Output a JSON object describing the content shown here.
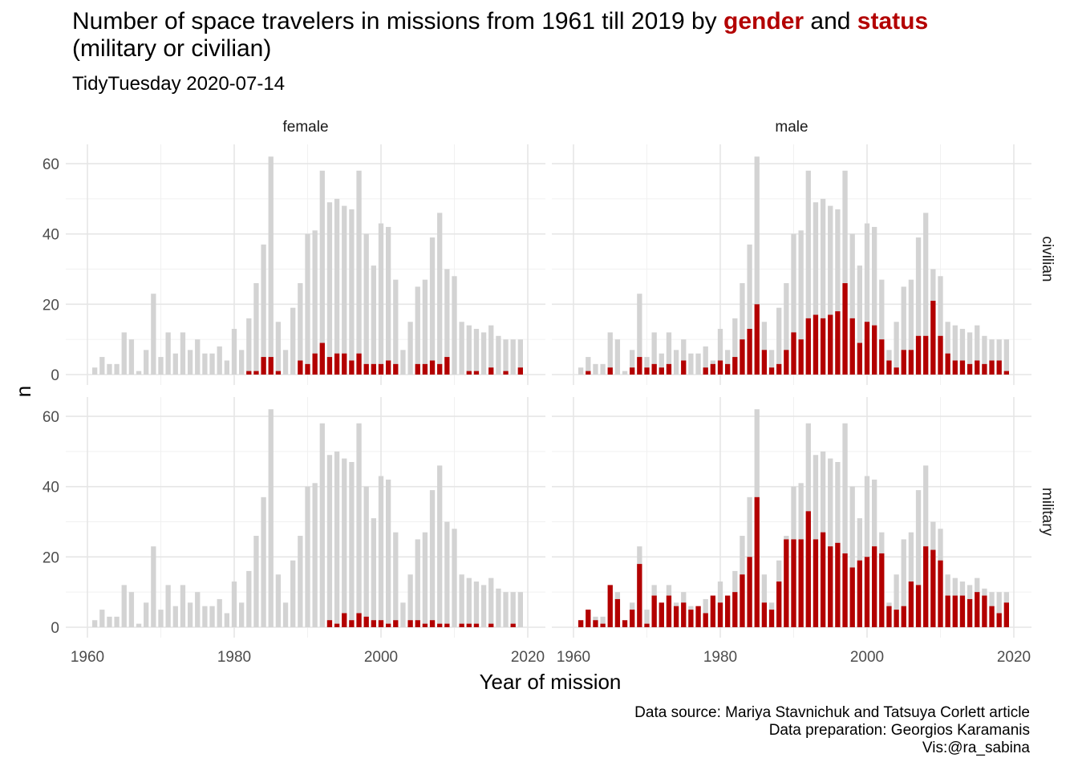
{
  "title": {
    "prefix": "Number of space travelers in missions from 1961 till 2019 by ",
    "gender_word": "gender",
    "middle": " and ",
    "status_word": "status",
    "line2": "(military or civilian)"
  },
  "subtitle": "TidyTuesday 2020-07-14",
  "caption": {
    "line1": "Data source: Mariya Stavnichuk and Tatsuya Corlett article",
    "line2": "Data preparation: Georgios Karamanis ",
    "line3": "Vis:@ra_sabina"
  },
  "colors": {
    "highlight": "#b30000",
    "background_bars": "#d3d3d3",
    "grid": "#e6e6e6"
  },
  "chart_data": {
    "type": "bar",
    "facet_cols": [
      "female",
      "male"
    ],
    "facet_rows": [
      "civilian",
      "military"
    ],
    "xlabel": "Year of mission",
    "ylabel": "n",
    "xlim": [
      1960,
      2020
    ],
    "x_ticks": [
      1960,
      1980,
      2000,
      2020
    ],
    "ylim": [
      0,
      65
    ],
    "y_ticks": [
      0,
      20,
      40,
      60
    ],
    "years": [
      1961,
      1962,
      1963,
      1964,
      1965,
      1966,
      1967,
      1968,
      1969,
      1970,
      1971,
      1972,
      1973,
      1974,
      1975,
      1976,
      1977,
      1978,
      1979,
      1980,
      1981,
      1982,
      1983,
      1984,
      1985,
      1986,
      1987,
      1988,
      1989,
      1990,
      1991,
      1992,
      1993,
      1994,
      1995,
      1996,
      1997,
      1998,
      1999,
      2000,
      2001,
      2002,
      2003,
      2004,
      2005,
      2006,
      2007,
      2008,
      2009,
      2010,
      2011,
      2012,
      2013,
      2014,
      2015,
      2016,
      2017,
      2018,
      2019
    ],
    "total_by_year": [
      2,
      5,
      3,
      3,
      12,
      10,
      1,
      7,
      23,
      5,
      12,
      6,
      12,
      7,
      10,
      6,
      6,
      8,
      4,
      13,
      7,
      16,
      26,
      37,
      62,
      15,
      7,
      19,
      26,
      40,
      41,
      58,
      49,
      50,
      48,
      47,
      58,
      40,
      31,
      43,
      42,
      27,
      7,
      15,
      25,
      27,
      39,
      46,
      30,
      28,
      15,
      14,
      13,
      12,
      14,
      11,
      10,
      10,
      10
    ],
    "panels": [
      {
        "gender": "female",
        "status": "civilian",
        "values": [
          0,
          0,
          0,
          0,
          0,
          0,
          0,
          0,
          0,
          0,
          0,
          0,
          0,
          0,
          0,
          0,
          0,
          0,
          0,
          0,
          0,
          1,
          1,
          5,
          5,
          1,
          0,
          0,
          4,
          3,
          6,
          9,
          5,
          6,
          6,
          4,
          6,
          3,
          3,
          3,
          4,
          3,
          0,
          0,
          3,
          3,
          4,
          3,
          5,
          0,
          0,
          1,
          1,
          0,
          2,
          0,
          1,
          0,
          2
        ]
      },
      {
        "gender": "male",
        "status": "civilian",
        "values": [
          0,
          1,
          0,
          0,
          2,
          0,
          0,
          2,
          5,
          2,
          3,
          2,
          3,
          0,
          4,
          0,
          0,
          2,
          3,
          4,
          3,
          5,
          10,
          13,
          20,
          7,
          2,
          3,
          7,
          12,
          10,
          16,
          17,
          16,
          17,
          18,
          26,
          16,
          9,
          15,
          14,
          10,
          4,
          2,
          7,
          7,
          11,
          11,
          21,
          11,
          6,
          4,
          4,
          3,
          4,
          3,
          4,
          4,
          1
        ]
      },
      {
        "gender": "female",
        "status": "military",
        "values": [
          0,
          0,
          0,
          0,
          0,
          0,
          0,
          0,
          0,
          0,
          0,
          0,
          0,
          0,
          0,
          0,
          0,
          0,
          0,
          0,
          0,
          0,
          0,
          0,
          0,
          0,
          0,
          0,
          0,
          0,
          0,
          0,
          2,
          1,
          4,
          2,
          4,
          3,
          2,
          2,
          1,
          2,
          0,
          2,
          2,
          1,
          2,
          1,
          1,
          0,
          1,
          1,
          1,
          0,
          1,
          0,
          0,
          1,
          0
        ]
      },
      {
        "gender": "male",
        "status": "military",
        "values": [
          2,
          5,
          2,
          1,
          12,
          8,
          2,
          5,
          18,
          1,
          9,
          7,
          9,
          6,
          7,
          5,
          6,
          4,
          9,
          7,
          9,
          10,
          15,
          20,
          37,
          7,
          5,
          13,
          25,
          25,
          25,
          33,
          25,
          27,
          23,
          24,
          21,
          17,
          19,
          20,
          23,
          21,
          6,
          5,
          6,
          13,
          12,
          23,
          22,
          19,
          9,
          9,
          9,
          8,
          10,
          9,
          6,
          4,
          7
        ]
      }
    ]
  }
}
